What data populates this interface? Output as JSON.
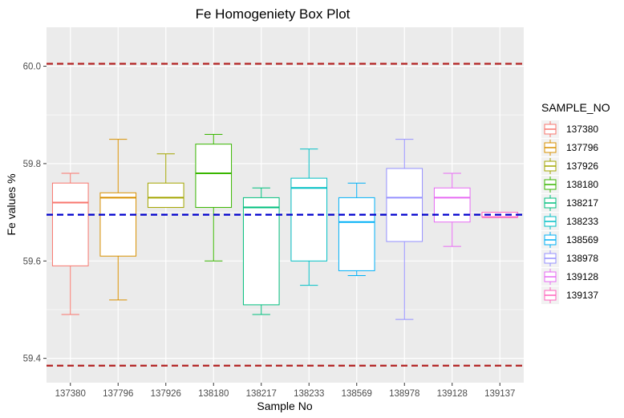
{
  "chart_data": {
    "type": "box",
    "title": "Fe Homogeniety Box Plot",
    "xlabel": "Sample No",
    "ylabel": "Fe values %",
    "ylim": [
      59.35,
      60.08
    ],
    "yticks": [
      "59.4",
      "59.6",
      "59.8",
      "60.0"
    ],
    "grid": true,
    "legend_title": "SAMPLE_NO",
    "legend_position": "right",
    "categories": [
      "137380",
      "137796",
      "137926",
      "138180",
      "138217",
      "138233",
      "138569",
      "138978",
      "139128",
      "139137"
    ],
    "colors": [
      "#F8766D",
      "#D89000",
      "#A3A500",
      "#39B600",
      "#00BF7D",
      "#00BFC4",
      "#00B0F6",
      "#9590FF",
      "#E76BF3",
      "#FF62BC"
    ],
    "boxes": [
      {
        "name": "137380",
        "min": 59.49,
        "q1": 59.59,
        "median": 59.72,
        "q3": 59.76,
        "max": 59.78
      },
      {
        "name": "137796",
        "min": 59.52,
        "q1": 59.61,
        "median": 59.73,
        "q3": 59.74,
        "max": 59.85
      },
      {
        "name": "137926",
        "min": 59.71,
        "q1": 59.71,
        "median": 59.73,
        "q3": 59.76,
        "max": 59.82
      },
      {
        "name": "138180",
        "min": 59.6,
        "q1": 59.71,
        "median": 59.78,
        "q3": 59.84,
        "max": 59.86
      },
      {
        "name": "138217",
        "min": 59.49,
        "q1": 59.51,
        "median": 59.71,
        "q3": 59.73,
        "max": 59.75
      },
      {
        "name": "138233",
        "min": 59.55,
        "q1": 59.6,
        "median": 59.75,
        "q3": 59.77,
        "max": 59.83
      },
      {
        "name": "138569",
        "min": 59.57,
        "q1": 59.58,
        "median": 59.68,
        "q3": 59.73,
        "max": 59.76
      },
      {
        "name": "138978",
        "min": 59.48,
        "q1": 59.64,
        "median": 59.73,
        "q3": 59.79,
        "max": 59.85
      },
      {
        "name": "139128",
        "min": 59.63,
        "q1": 59.68,
        "median": 59.73,
        "q3": 59.75,
        "max": 59.78
      },
      {
        "name": "139137",
        "min": 59.69,
        "q1": 59.69,
        "median": 59.69,
        "q3": 59.7,
        "max": 59.7
      }
    ],
    "reference_lines": [
      {
        "value": 60.005,
        "color": "#B22222",
        "style": "dashed"
      },
      {
        "value": 59.695,
        "color": "#0000CD",
        "style": "dashed"
      },
      {
        "value": 59.385,
        "color": "#B22222",
        "style": "dashed"
      }
    ]
  }
}
